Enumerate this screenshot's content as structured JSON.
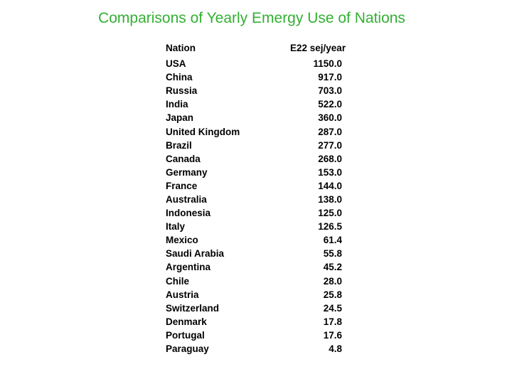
{
  "title": "Comparisons of Yearly Emergy Use of Nations",
  "table": {
    "headers": {
      "nation": "Nation",
      "value": "E22 sej/year"
    },
    "rows": [
      {
        "nation": "USA",
        "value": "1150.0"
      },
      {
        "nation": "China",
        "value": "917.0"
      },
      {
        "nation": "Russia",
        "value": "703.0"
      },
      {
        "nation": "India",
        "value": "522.0"
      },
      {
        "nation": "Japan",
        "value": "360.0"
      },
      {
        "nation": "United Kingdom",
        "value": "287.0"
      },
      {
        "nation": "Brazil",
        "value": "277.0"
      },
      {
        "nation": "Canada",
        "value": "268.0"
      },
      {
        "nation": "Germany",
        "value": "153.0"
      },
      {
        "nation": "France",
        "value": "144.0"
      },
      {
        "nation": "Australia",
        "value": "138.0"
      },
      {
        "nation": "Indonesia",
        "value": "125.0"
      },
      {
        "nation": "Italy",
        "value": "126.5"
      },
      {
        "nation": "Mexico",
        "value": "61.4"
      },
      {
        "nation": "Saudi Arabia",
        "value": "55.8"
      },
      {
        "nation": "Argentina",
        "value": "45.2"
      },
      {
        "nation": "Chile",
        "value": "28.0"
      },
      {
        "nation": "Austria",
        "value": "25.8"
      },
      {
        "nation": "Switzerland",
        "value": "24.5"
      },
      {
        "nation": "Denmark",
        "value": "17.8"
      },
      {
        "nation": "Portugal",
        "value": "17.6"
      },
      {
        "nation": "Paraguay",
        "value": "4.8"
      }
    ]
  },
  "colors": {
    "title": "#33b033",
    "text": "#000000",
    "background": "#ffffff"
  }
}
